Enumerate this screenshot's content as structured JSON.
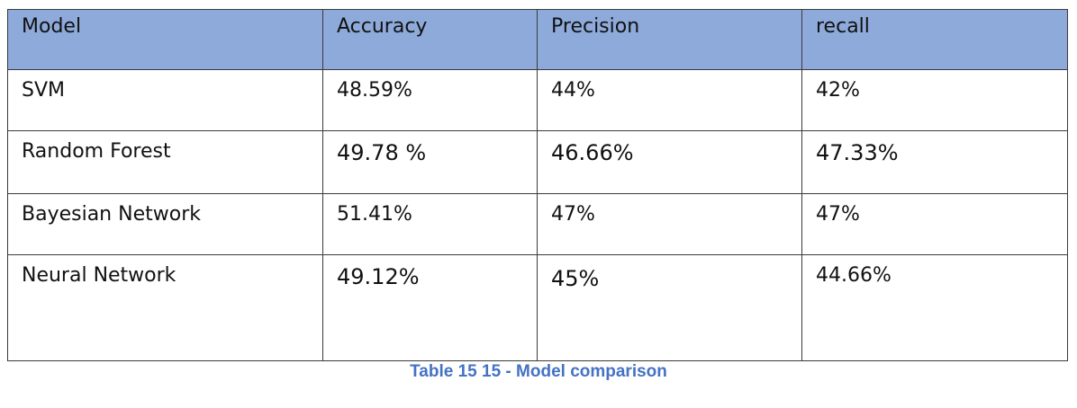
{
  "table": {
    "headers": [
      "Model",
      "Accuracy",
      "Precision",
      "recall"
    ],
    "rows": [
      [
        "SVM",
        "48.59%",
        "44%",
        "42%"
      ],
      [
        "Random Forest",
        "49.78 %",
        "46.66%",
        "47.33%"
      ],
      [
        "Bayesian Network",
        "51.41%",
        "47%",
        "47%"
      ],
      [
        "Neural Network",
        "49.12%",
        "45%",
        "44.66%"
      ]
    ],
    "header_color": "#8eaadb"
  },
  "caption": {
    "text": "Table 15 15 - Model comparison",
    "color": "#4472c4"
  }
}
